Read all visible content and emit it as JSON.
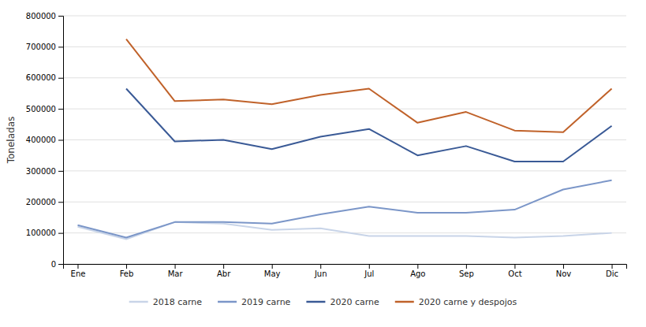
{
  "chart_data": {
    "type": "line",
    "categories": [
      "Ene",
      "Feb",
      "Mar",
      "Abr",
      "May",
      "Jun",
      "Jul",
      "Ago",
      "Sep",
      "Oct",
      "Nov",
      "Dic"
    ],
    "series": [
      {
        "name": "2018 carne",
        "color": "#c8d4e8",
        "values": [
          120000,
          80000,
          135000,
          130000,
          110000,
          115000,
          90000,
          90000,
          90000,
          85000,
          90000,
          100000
        ]
      },
      {
        "name": "2019 carne",
        "color": "#7b96c8",
        "values": [
          125000,
          85000,
          135000,
          135000,
          130000,
          160000,
          185000,
          165000,
          165000,
          175000,
          240000,
          270000
        ]
      },
      {
        "name": "2020 carne",
        "color": "#3a5a96",
        "values": [
          null,
          565000,
          395000,
          400000,
          370000,
          410000,
          435000,
          350000,
          380000,
          330000,
          330000,
          445000
        ]
      },
      {
        "name": "2020 carne y despojos",
        "color": "#c0622a",
        "values": [
          null,
          725000,
          525000,
          530000,
          515000,
          545000,
          565000,
          455000,
          490000,
          430000,
          425000,
          565000
        ]
      }
    ],
    "ylabel": "Toneladas",
    "ylim": [
      0,
      800000
    ],
    "yticks": [
      0,
      100000,
      200000,
      300000,
      400000,
      500000,
      600000,
      700000,
      800000
    ],
    "grid": true,
    "legend": "bottom"
  }
}
